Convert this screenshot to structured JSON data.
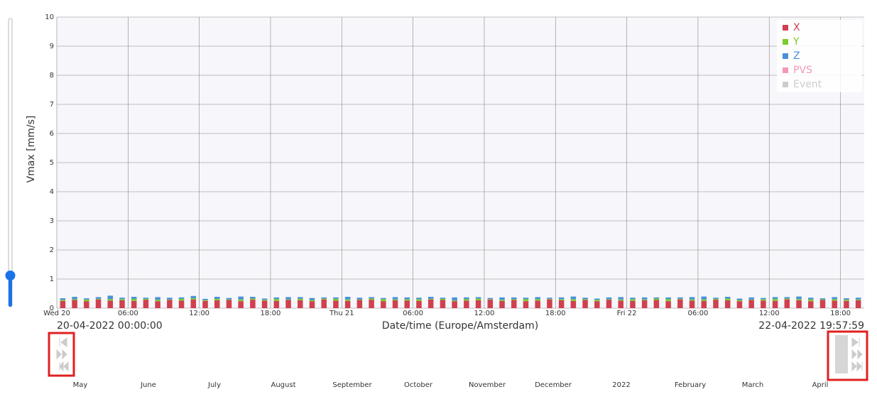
{
  "chart_data": {
    "type": "bar",
    "stacked": true,
    "y_label": "Vmax [mm/s]",
    "x_label": "Date/time (Europe/Amsterdam)",
    "ylim": [
      0,
      10
    ],
    "yticks": [
      0,
      1,
      2,
      3,
      4,
      5,
      6,
      7,
      8,
      9,
      10
    ],
    "grid": true,
    "legend": "top-right",
    "xlim": [
      0,
      68
    ],
    "xticks": [
      {
        "value": 0,
        "label": "Wed 20"
      },
      {
        "value": 6,
        "label": "06:00"
      },
      {
        "value": 12,
        "label": "12:00"
      },
      {
        "value": 18,
        "label": "18:00"
      },
      {
        "value": 24,
        "label": "Thu 21"
      },
      {
        "value": 30,
        "label": "06:00"
      },
      {
        "value": 36,
        "label": "12:00"
      },
      {
        "value": 42,
        "label": "18:00"
      },
      {
        "value": 48,
        "label": "Fri 22"
      },
      {
        "value": 54,
        "label": "06:00"
      },
      {
        "value": 60,
        "label": "12:00"
      },
      {
        "value": 66,
        "label": "18:00"
      }
    ],
    "x": [
      0.5,
      1.5,
      2.5,
      3.5,
      4.5,
      5.5,
      6.5,
      7.5,
      8.5,
      9.5,
      10.5,
      11.5,
      12.5,
      13.5,
      14.5,
      15.5,
      16.5,
      17.5,
      18.5,
      19.5,
      20.5,
      21.5,
      22.5,
      23.5,
      24.5,
      25.5,
      26.5,
      27.5,
      28.5,
      29.5,
      30.5,
      31.5,
      32.5,
      33.5,
      34.5,
      35.5,
      36.5,
      37.5,
      38.5,
      39.5,
      40.5,
      41.5,
      42.5,
      43.5,
      44.5,
      45.5,
      46.5,
      47.5,
      48.5,
      49.5,
      50.5,
      51.5,
      52.5,
      53.5,
      54.5,
      55.5,
      56.5,
      57.5,
      58.5,
      59.5,
      60.5,
      61.5,
      62.5,
      63.5,
      64.5,
      65.5,
      66.5,
      67.5
    ],
    "series": [
      {
        "name": "X",
        "color": "#d0404e",
        "values": [
          0.25,
          0.28,
          0.24,
          0.3,
          0.26,
          0.27,
          0.25,
          0.29,
          0.24,
          0.28,
          0.26,
          0.3,
          0.25,
          0.27,
          0.28,
          0.24,
          0.29,
          0.26,
          0.25,
          0.28,
          0.27,
          0.24,
          0.3,
          0.26,
          0.25,
          0.28,
          0.29,
          0.24,
          0.27,
          0.26,
          0.25,
          0.3,
          0.28,
          0.24,
          0.26,
          0.27,
          0.29,
          0.25,
          0.28,
          0.24,
          0.26,
          0.3,
          0.27,
          0.25,
          0.28,
          0.24,
          0.29,
          0.26,
          0.25,
          0.27,
          0.28,
          0.24,
          0.3,
          0.26,
          0.25,
          0.29,
          0.27,
          0.24,
          0.28,
          0.26,
          0.25,
          0.3,
          0.27,
          0.24,
          0.28,
          0.26,
          0.25,
          0.27
        ]
      },
      {
        "name": "Y",
        "color": "#7ccc2c",
        "values": [
          0.04,
          0.03,
          0.06,
          0.02,
          0.05,
          0.04,
          0.07,
          0.03,
          0.05,
          0.02,
          0.06,
          0.04,
          0.03,
          0.05,
          0.02,
          0.06,
          0.04,
          0.03,
          0.07,
          0.02,
          0.05,
          0.04,
          0.03,
          0.06,
          0.05,
          0.02,
          0.04,
          0.07,
          0.03,
          0.05,
          0.06,
          0.02,
          0.04,
          0.03,
          0.05,
          0.06,
          0.02,
          0.04,
          0.03,
          0.07,
          0.05,
          0.02,
          0.04,
          0.06,
          0.03,
          0.05,
          0.02,
          0.04,
          0.06,
          0.03,
          0.05,
          0.07,
          0.02,
          0.04,
          0.05,
          0.03,
          0.06,
          0.04,
          0.02,
          0.05,
          0.07,
          0.03,
          0.04,
          0.06,
          0.02,
          0.05,
          0.04,
          0.03
        ]
      },
      {
        "name": "Z",
        "color": "#4a90d9",
        "values": [
          0.05,
          0.08,
          0.04,
          0.06,
          0.12,
          0.05,
          0.07,
          0.04,
          0.09,
          0.06,
          0.05,
          0.08,
          0.04,
          0.07,
          0.05,
          0.1,
          0.06,
          0.04,
          0.05,
          0.08,
          0.06,
          0.07,
          0.04,
          0.05,
          0.09,
          0.06,
          0.05,
          0.04,
          0.08,
          0.06,
          0.05,
          0.07,
          0.04,
          0.1,
          0.06,
          0.05,
          0.04,
          0.08,
          0.06,
          0.05,
          0.07,
          0.04,
          0.06,
          0.09,
          0.05,
          0.04,
          0.06,
          0.08,
          0.05,
          0.07,
          0.04,
          0.06,
          0.05,
          0.08,
          0.1,
          0.04,
          0.06,
          0.05,
          0.07,
          0.04,
          0.06,
          0.05,
          0.09,
          0.06,
          0.04,
          0.07,
          0.05,
          0.06
        ]
      },
      {
        "name": "PVS",
        "color": "#f598b8",
        "values": [
          null,
          null,
          null,
          null,
          null,
          null,
          null,
          null,
          null,
          null,
          null,
          null,
          null,
          null,
          null,
          null,
          null,
          null,
          null,
          null,
          null,
          null,
          null,
          null,
          null,
          null,
          null,
          null,
          null,
          null,
          null,
          null,
          null,
          null,
          null,
          null,
          null,
          null,
          null,
          null,
          null,
          null,
          null,
          null,
          null,
          null,
          null,
          null,
          null,
          null,
          null,
          null,
          null,
          null,
          null,
          null,
          null,
          null,
          null,
          null,
          null,
          null,
          null,
          null,
          null,
          null,
          null,
          null
        ]
      },
      {
        "name": "Event",
        "color": "#cccccc",
        "values": [
          null,
          null,
          null,
          null,
          null,
          null,
          null,
          null,
          null,
          null,
          null,
          null,
          null,
          null,
          null,
          null,
          null,
          null,
          null,
          null,
          null,
          null,
          null,
          null,
          null,
          null,
          null,
          null,
          null,
          null,
          null,
          null,
          null,
          null,
          null,
          null,
          null,
          null,
          null,
          null,
          null,
          null,
          null,
          null,
          null,
          null,
          null,
          null,
          null,
          null,
          null,
          null,
          null,
          null,
          null,
          null,
          null,
          null,
          null,
          null,
          null,
          null,
          null,
          null,
          null,
          null,
          null,
          null
        ]
      }
    ]
  },
  "range": {
    "start": "20-04-2022 00:00:00",
    "end": "22-04-2022 19:57:59"
  },
  "navigator": {
    "labels": [
      "May",
      "June",
      "July",
      "August",
      "September",
      "October",
      "November",
      "December",
      "2022",
      "February",
      "March",
      "April"
    ]
  }
}
